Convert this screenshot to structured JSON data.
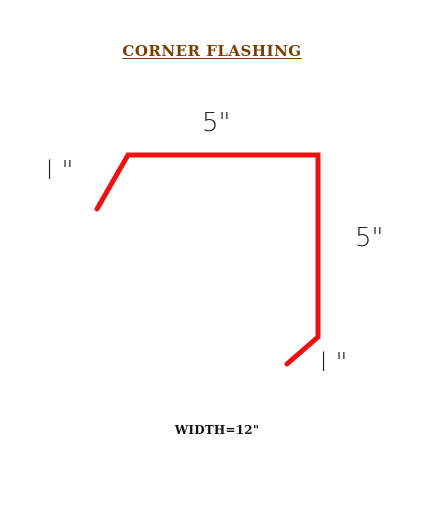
{
  "title": "CORNER  FLASHING",
  "colors": {
    "title": "#7a3f00",
    "flashing": "#ee1111",
    "text": "#222222"
  },
  "dimensions": {
    "top": "5\"",
    "left_lip": "l \"",
    "right": "5\"",
    "bottom_lip": "l \""
  },
  "width_note": "WIDTH=12\""
}
